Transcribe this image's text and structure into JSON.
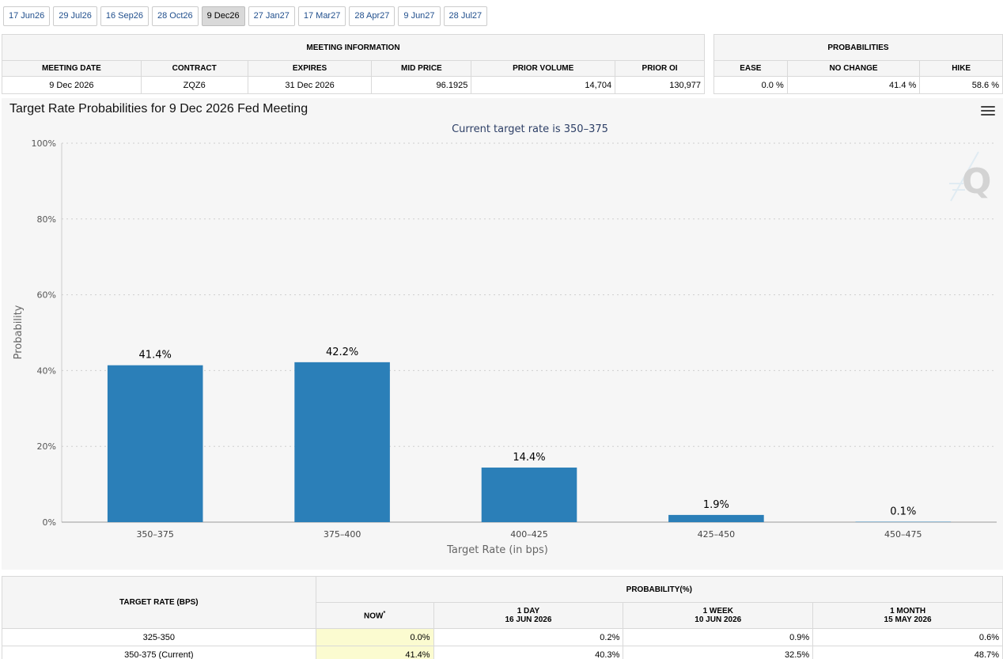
{
  "tabs": [
    "17 Jun26",
    "29 Jul26",
    "16 Sep26",
    "28 Oct26",
    "9 Dec26",
    "27 Jan27",
    "17 Mar27",
    "28 Apr27",
    "9 Jun27",
    "28 Jul27"
  ],
  "active_tab": 4,
  "meeting_info": {
    "header": "MEETING INFORMATION",
    "cols": [
      "MEETING DATE",
      "CONTRACT",
      "EXPIRES",
      "MID PRICE",
      "PRIOR VOLUME",
      "PRIOR OI"
    ],
    "values": [
      "9 Dec 2026",
      "ZQZ6",
      "31 Dec 2026",
      "96.1925",
      "14,704",
      "130,977"
    ]
  },
  "probabilities": {
    "header": "PROBABILITIES",
    "cols": [
      "EASE",
      "NO CHANGE",
      "HIKE"
    ],
    "values": [
      "0.0 %",
      "41.4 %",
      "58.6 %"
    ]
  },
  "chart": {
    "title": "Target Rate Probabilities for 9 Dec 2026 Fed Meeting",
    "subtitle": "Current target rate is 350–375",
    "watermark": "Q"
  },
  "chart_data": {
    "type": "bar",
    "title": "Target Rate Probabilities for 9 Dec 2026 Fed Meeting",
    "subtitle": "Current target rate is 350–375",
    "categories": [
      "350–375",
      "375–400",
      "400–425",
      "425–450",
      "450–475"
    ],
    "values": [
      41.4,
      42.2,
      14.4,
      1.9,
      0.1
    ],
    "data_labels": [
      "41.4%",
      "42.2%",
      "14.4%",
      "1.9%",
      "0.1%"
    ],
    "xlabel": "Target Rate (in bps)",
    "ylabel": "Probability",
    "ylim": [
      0,
      100
    ],
    "yticks": [
      "0%",
      "20%",
      "40%",
      "60%",
      "80%",
      "100%"
    ],
    "grid": true,
    "bar_color": "#2b7fb8"
  },
  "bottom_table": {
    "rate_header": "TARGET RATE (BPS)",
    "prob_header": "PROBABILITY(%)",
    "now_label": "NOW",
    "now_mark": "*",
    "cols": [
      {
        "line1": "1 DAY",
        "line2": "16 JUN 2026"
      },
      {
        "line1": "1 WEEK",
        "line2": "10 JUN 2026"
      },
      {
        "line1": "1 MONTH",
        "line2": "15 MAY 2026"
      }
    ],
    "rows": [
      {
        "rate": "325-350",
        "now": "0.0%",
        "d1": "0.2%",
        "w1": "0.9%",
        "m1": "0.6%"
      },
      {
        "rate": "350-375 (Current)",
        "now": "41.4%",
        "d1": "40.3%",
        "w1": "32.5%",
        "m1": "48.7%"
      }
    ]
  }
}
